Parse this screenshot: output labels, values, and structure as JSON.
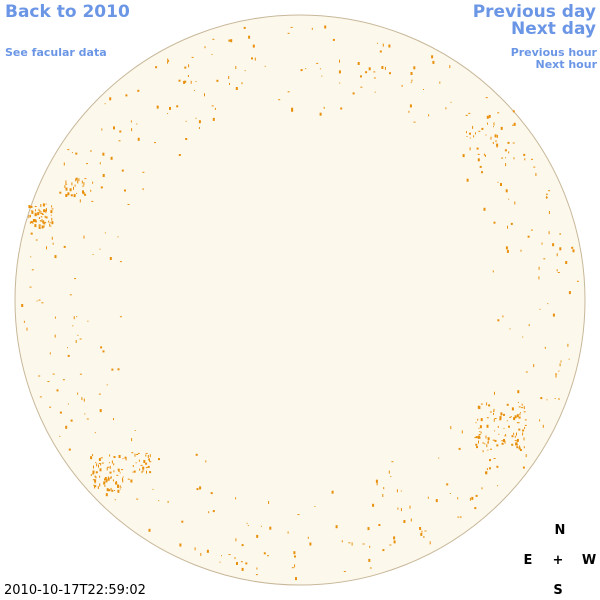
{
  "links": {
    "back": "Back to 2010",
    "facular": "See facular data",
    "previous_day": "Previous day",
    "next_day": "Next day",
    "previous_hour": "Previous hour",
    "next_hour": "Next hour"
  },
  "timestamp": "2010-10-17T22:59:02",
  "compass": {
    "north": "N",
    "east": "E",
    "center": "+",
    "west": "W",
    "south": "S"
  }
}
